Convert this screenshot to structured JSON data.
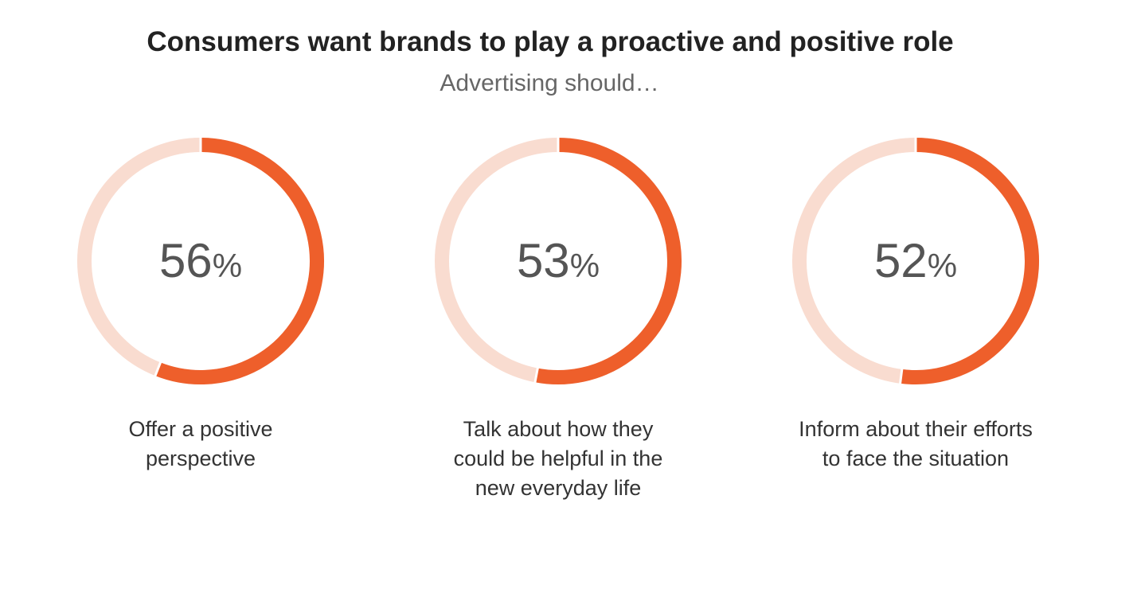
{
  "title": "Consumers want brands to play a proactive and positive role",
  "subtitle": "Advertising should…",
  "chart_data": [
    {
      "type": "donut",
      "values": [
        56
      ],
      "value_labels": [
        "56%"
      ],
      "label_lines": [
        "Offer a positive",
        "perspective"
      ],
      "color": "#ee5f2b",
      "track_color": "#f9dcd0"
    },
    {
      "type": "donut",
      "values": [
        53
      ],
      "value_labels": [
        "53%"
      ],
      "label_lines": [
        "Talk about how they",
        "could be helpful in the",
        "new everyday life"
      ],
      "color": "#ee5f2b",
      "track_color": "#f9dcd0"
    },
    {
      "type": "donut",
      "values": [
        52
      ],
      "value_labels": [
        "52%"
      ],
      "label_lines": [
        "Inform about their efforts",
        "to face the situation"
      ],
      "color": "#ee5f2b",
      "track_color": "#f9dcd0"
    }
  ]
}
